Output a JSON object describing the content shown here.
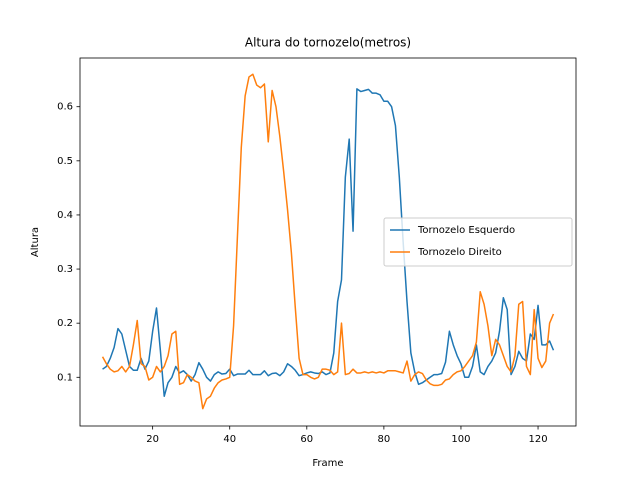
{
  "chart_data": {
    "type": "line",
    "title": "Altura do tornozelo(metros)",
    "x_label": "Frame",
    "y_label": "Altura",
    "x": [
      7,
      8,
      9,
      10,
      11,
      12,
      13,
      14,
      15,
      16,
      17,
      18,
      19,
      20,
      21,
      22,
      23,
      24,
      25,
      26,
      27,
      28,
      29,
      30,
      31,
      32,
      33,
      34,
      35,
      36,
      37,
      38,
      39,
      40,
      41,
      42,
      43,
      44,
      45,
      46,
      47,
      48,
      49,
      50,
      51,
      52,
      53,
      54,
      55,
      56,
      57,
      58,
      59,
      60,
      61,
      62,
      63,
      64,
      65,
      66,
      67,
      68,
      69,
      70,
      71,
      72,
      73,
      74,
      75,
      76,
      77,
      78,
      79,
      80,
      81,
      82,
      83,
      84,
      85,
      86,
      87,
      88,
      89,
      90,
      91,
      92,
      93,
      94,
      95,
      96,
      97,
      98,
      99,
      100,
      101,
      102,
      103,
      104,
      105,
      106,
      107,
      108,
      109,
      110,
      111,
      112,
      113,
      114,
      115,
      116,
      117,
      118,
      119,
      120,
      121,
      122,
      123,
      124
    ],
    "series": [
      {
        "name": "Tornozelo Esquerdo",
        "color": "#1f77b4",
        "values": [
          0.115,
          0.12,
          0.135,
          0.155,
          0.19,
          0.18,
          0.15,
          0.12,
          0.113,
          0.113,
          0.135,
          0.115,
          0.13,
          0.185,
          0.228,
          0.15,
          0.065,
          0.09,
          0.1,
          0.12,
          0.108,
          0.112,
          0.105,
          0.093,
          0.105,
          0.127,
          0.115,
          0.1,
          0.093,
          0.105,
          0.11,
          0.106,
          0.107,
          0.115,
          0.103,
          0.106,
          0.106,
          0.106,
          0.113,
          0.105,
          0.105,
          0.105,
          0.112,
          0.103,
          0.107,
          0.108,
          0.103,
          0.11,
          0.125,
          0.12,
          0.113,
          0.103,
          0.105,
          0.108,
          0.11,
          0.108,
          0.107,
          0.11,
          0.105,
          0.108,
          0.145,
          0.24,
          0.28,
          0.47,
          0.54,
          0.37,
          0.633,
          0.628,
          0.63,
          0.632,
          0.625,
          0.625,
          0.622,
          0.61,
          0.61,
          0.6,
          0.565,
          0.47,
          0.35,
          0.24,
          0.145,
          0.11,
          0.087,
          0.09,
          0.095,
          0.1,
          0.105,
          0.105,
          0.107,
          0.128,
          0.185,
          0.16,
          0.14,
          0.125,
          0.1,
          0.1,
          0.12,
          0.16,
          0.11,
          0.105,
          0.12,
          0.13,
          0.145,
          0.185,
          0.247,
          0.225,
          0.105,
          0.12,
          0.148,
          0.135,
          0.13,
          0.18,
          0.17,
          0.233,
          0.16,
          0.16,
          0.167,
          0.15
        ]
      },
      {
        "name": "Tornozelo Direito",
        "color": "#ff7f0e",
        "values": [
          0.138,
          0.125,
          0.115,
          0.11,
          0.112,
          0.12,
          0.11,
          0.12,
          0.16,
          0.205,
          0.125,
          0.12,
          0.095,
          0.1,
          0.12,
          0.11,
          0.12,
          0.14,
          0.18,
          0.185,
          0.087,
          0.09,
          0.105,
          0.1,
          0.093,
          0.09,
          0.042,
          0.06,
          0.065,
          0.08,
          0.09,
          0.095,
          0.097,
          0.1,
          0.195,
          0.36,
          0.525,
          0.62,
          0.655,
          0.66,
          0.64,
          0.635,
          0.642,
          0.535,
          0.63,
          0.6,
          0.545,
          0.48,
          0.41,
          0.33,
          0.23,
          0.135,
          0.105,
          0.105,
          0.1,
          0.097,
          0.1,
          0.115,
          0.115,
          0.113,
          0.105,
          0.11,
          0.2,
          0.105,
          0.107,
          0.115,
          0.108,
          0.108,
          0.11,
          0.108,
          0.11,
          0.108,
          0.11,
          0.108,
          0.112,
          0.112,
          0.112,
          0.11,
          0.108,
          0.13,
          0.093,
          0.105,
          0.11,
          0.107,
          0.095,
          0.088,
          0.085,
          0.085,
          0.087,
          0.095,
          0.097,
          0.105,
          0.11,
          0.112,
          0.12,
          0.13,
          0.14,
          0.165,
          0.258,
          0.235,
          0.195,
          0.14,
          0.17,
          0.16,
          0.14,
          0.12,
          0.11,
          0.14,
          0.235,
          0.24,
          0.12,
          0.105,
          0.225,
          0.135,
          0.118,
          0.13,
          0.2,
          0.217
        ]
      }
    ],
    "xlim": [
      1.15,
      129.85
    ],
    "ylim": [
      0.01,
      0.69
    ],
    "xticks": [
      20,
      40,
      60,
      80,
      100,
      120
    ],
    "yticks": [
      0.1,
      0.2,
      0.3,
      0.4,
      0.5,
      0.6
    ],
    "grid": false,
    "legend": "center right"
  }
}
